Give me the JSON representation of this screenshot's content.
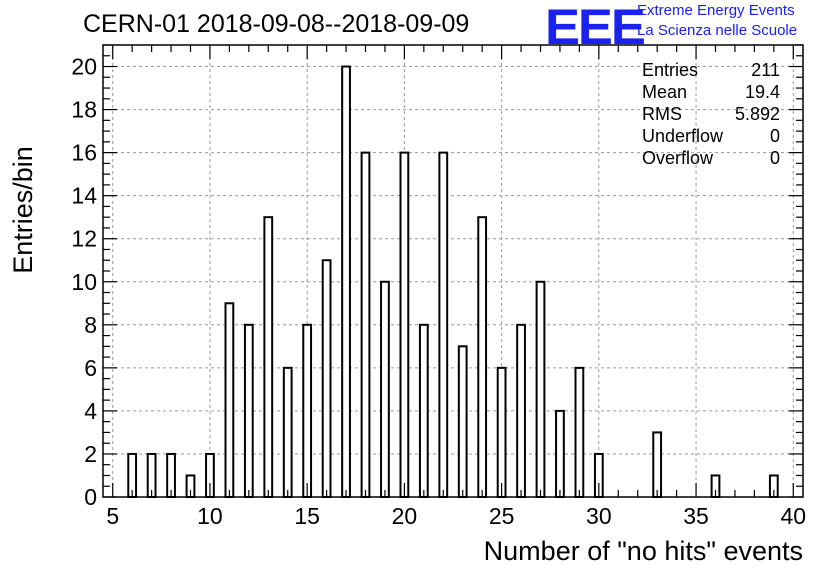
{
  "header": {
    "title": "CERN-01 2018-09-08--2018-09-09",
    "logo_text": "EEE",
    "logo_line1": "Extreme Energy Events",
    "logo_line2": "La Scienza nelle Scuole"
  },
  "stats_box": {
    "rows": [
      {
        "label": "Entries",
        "value": "211"
      },
      {
        "label": "Mean",
        "value": "19.4"
      },
      {
        "label": "RMS",
        "value": "5.892"
      },
      {
        "label": "Underflow",
        "value": "0"
      },
      {
        "label": "Overflow",
        "value": "0"
      }
    ]
  },
  "chart_data": {
    "type": "bar",
    "title": "CERN-01 2018-09-08--2018-09-09",
    "xlabel": "Number of \"no hits\" events",
    "ylabel": "Entries/bin",
    "xlim": [
      4.5,
      40.5
    ],
    "ylim": [
      0,
      21
    ],
    "grid": true,
    "bin_width": 0.4,
    "x": [
      6,
      7,
      8,
      9,
      10,
      11,
      12,
      13,
      14,
      15,
      16,
      17,
      18,
      19,
      20,
      21,
      22,
      23,
      24,
      25,
      26,
      27,
      28,
      29,
      30,
      33,
      36,
      39
    ],
    "values": [
      2,
      2,
      2,
      1,
      2,
      9,
      8,
      13,
      6,
      8,
      11,
      20,
      16,
      10,
      16,
      8,
      16,
      7,
      13,
      6,
      8,
      10,
      4,
      6,
      2,
      3,
      1,
      1
    ],
    "x_ticks": [
      "5",
      "10",
      "15",
      "20",
      "25",
      "30",
      "35",
      "40"
    ],
    "y_ticks": [
      "0",
      "2",
      "4",
      "6",
      "8",
      "10",
      "12",
      "14",
      "16",
      "18",
      "20"
    ],
    "colors": {
      "bar_stroke": "#000000",
      "bar_fill": "#ffffff",
      "grid": "#9a9a9a",
      "logo": "#1b22f0"
    }
  }
}
